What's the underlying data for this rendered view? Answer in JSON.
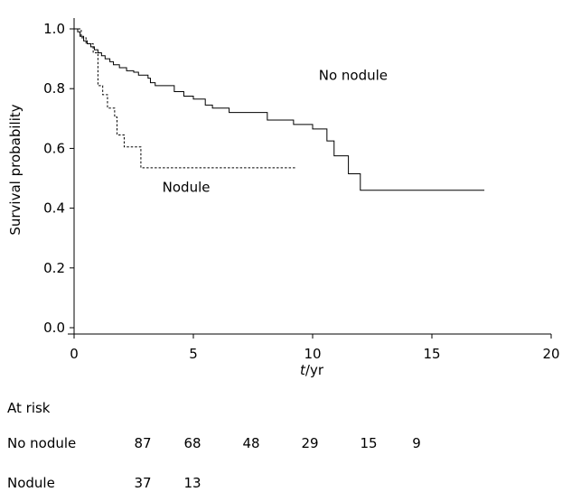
{
  "chart_data": {
    "type": "line",
    "title": "",
    "xlabel_italic": "t",
    "xlabel_unit": "/yr",
    "ylabel": "Survival probability",
    "xlim": [
      0,
      20
    ],
    "ylim": [
      0,
      1.0
    ],
    "x_ticks": [
      0,
      5,
      10,
      15,
      20
    ],
    "x_tick_labels": [
      "0",
      "5",
      "10",
      "15",
      "20"
    ],
    "y_ticks": [
      0.0,
      0.2,
      0.4,
      0.6,
      0.8,
      1.0
    ],
    "y_tick_labels": [
      "0.0",
      "0.2",
      "0.4",
      "0.6",
      "0.8",
      "1.0"
    ],
    "grid": false,
    "legend": "none",
    "series": [
      {
        "name": "No nodule",
        "style": "solid",
        "color": "#000000",
        "points": [
          [
            0,
            1.0
          ],
          [
            0.15,
            0.99
          ],
          [
            0.25,
            0.975
          ],
          [
            0.4,
            0.96
          ],
          [
            0.55,
            0.95
          ],
          [
            0.7,
            0.94
          ],
          [
            0.85,
            0.93
          ],
          [
            1.0,
            0.92
          ],
          [
            1.15,
            0.91
          ],
          [
            1.3,
            0.9
          ],
          [
            1.5,
            0.89
          ],
          [
            1.65,
            0.88
          ],
          [
            1.9,
            0.87
          ],
          [
            2.2,
            0.86
          ],
          [
            2.5,
            0.855
          ],
          [
            2.7,
            0.845
          ],
          [
            3.1,
            0.835
          ],
          [
            3.2,
            0.82
          ],
          [
            3.4,
            0.81
          ],
          [
            4.2,
            0.79
          ],
          [
            4.6,
            0.775
          ],
          [
            5.0,
            0.765
          ],
          [
            5.5,
            0.745
          ],
          [
            5.8,
            0.735
          ],
          [
            6.5,
            0.72
          ],
          [
            8.1,
            0.695
          ],
          [
            8.2,
            0.695
          ],
          [
            9.1,
            0.695
          ],
          [
            9.2,
            0.68
          ],
          [
            10.0,
            0.665
          ],
          [
            10.6,
            0.625
          ],
          [
            10.9,
            0.575
          ],
          [
            11.5,
            0.515
          ],
          [
            12.0,
            0.46
          ],
          [
            17.2,
            0.46
          ]
        ]
      },
      {
        "name": "Nodule",
        "style": "dashed",
        "color": "#000000",
        "points": [
          [
            0,
            1.0
          ],
          [
            0.3,
            0.97
          ],
          [
            0.5,
            0.95
          ],
          [
            0.8,
            0.92
          ],
          [
            1.0,
            0.81
          ],
          [
            1.2,
            0.78
          ],
          [
            1.4,
            0.735
          ],
          [
            1.7,
            0.705
          ],
          [
            1.8,
            0.645
          ],
          [
            2.1,
            0.605
          ],
          [
            2.8,
            0.535
          ],
          [
            9.3,
            0.535
          ]
        ]
      }
    ],
    "annotations": [
      {
        "text": "No nodule",
        "x": 11.7,
        "y": 0.845
      },
      {
        "text": "Nodule",
        "x": 4.7,
        "y": 0.47
      }
    ]
  },
  "at_risk": {
    "title": "At risk",
    "rows": [
      {
        "label": "No nodule",
        "values": [
          "87",
          "68",
          "48",
          "29",
          "15",
          "9"
        ]
      },
      {
        "label": "Nodule",
        "values": [
          "37",
          "13"
        ]
      }
    ]
  }
}
